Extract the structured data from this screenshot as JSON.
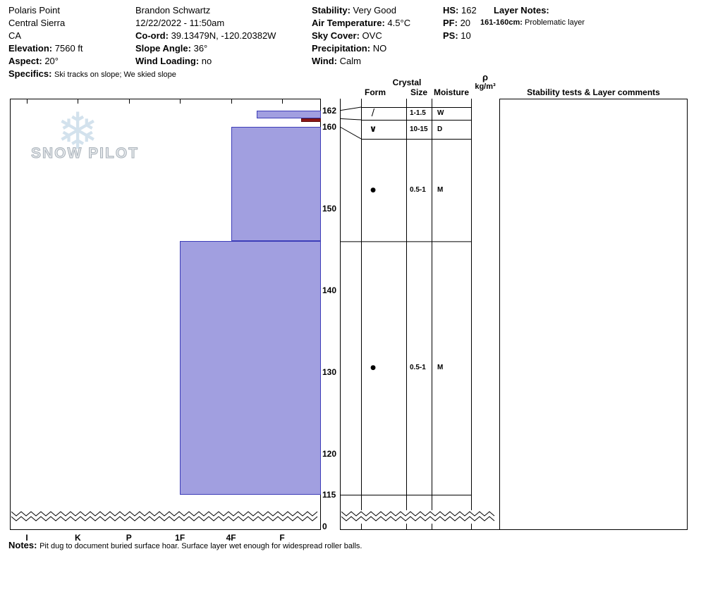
{
  "header": {
    "location": {
      "name": "Polaris Point",
      "region": "Central Sierra",
      "state": "CA",
      "elevation_label": "Elevation:",
      "elevation_value": "7560 ft",
      "aspect_label": "Aspect:",
      "aspect_value": "20°",
      "specifics_label": "Specifics:",
      "specifics_value": "Ski tracks on slope; We skied slope"
    },
    "observer": {
      "name": "Brandon Schwartz",
      "datetime": "12/22/2022 - 11:50am",
      "coord_label": "Co-ord:",
      "coord_value": "39.13479N, -120.20382W",
      "slope_angle_label": "Slope Angle:",
      "slope_angle_value": "36°",
      "wind_loading_label": "Wind Loading:",
      "wind_loading_value": "no"
    },
    "conditions": {
      "stability_label": "Stability:",
      "stability_value": "Very Good",
      "air_temp_label": "Air Temperature:",
      "air_temp_value": "4.5°C",
      "sky_cover_label": "Sky Cover:",
      "sky_cover_value": "OVC",
      "precip_label": "Precipitation:",
      "precip_value": "NO",
      "wind_label": "Wind:",
      "wind_value": "Calm"
    },
    "summary": {
      "hs_label": "HS:",
      "hs_value": "162",
      "pf_label": "PF:",
      "pf_value": "20",
      "ps_label": "PS:",
      "ps_value": "10"
    },
    "layer_notes": {
      "title": "Layer Notes:",
      "items": [
        {
          "range": "161-160cm:",
          "text": "Problematic layer"
        }
      ]
    }
  },
  "watermark": {
    "text": "SNOW PILOT",
    "snowflake_icon": "❄"
  },
  "table": {
    "headers": {
      "crystal": "Crystal",
      "form": "Form",
      "size": "Size",
      "moisture": "Moisture",
      "rho": "ρ",
      "rho_units": "kg/m³",
      "stability": "Stability tests & Layer comments"
    }
  },
  "chart_data": {
    "type": "bar",
    "subtype": "snow-profile-hardness",
    "hand_hardness_ticks": [
      "I",
      "K",
      "P",
      "1F",
      "4F",
      "F"
    ],
    "depth_tick_labels_cm": [
      162,
      160,
      150,
      140,
      130,
      120,
      115,
      0
    ],
    "depth_axis_break_label": "0",
    "total_height_cm": 162,
    "bar_fill": "#a19fe0",
    "bar_border": "#3d3db8",
    "problem_fill": "#8c1717",
    "problem_border": "#5e0d0d",
    "layers": [
      {
        "top_cm": 162,
        "bottom_cm": 161,
        "hardness": "F+",
        "grain_form_symbol": "/",
        "grain_size_mm": "1-1.5",
        "moisture": "W"
      },
      {
        "top_cm": 161,
        "bottom_cm": 160,
        "hardness": "F-",
        "grain_form_symbol": "∨",
        "grain_size_mm": "10-15",
        "moisture": "D",
        "problematic": true
      },
      {
        "top_cm": 160,
        "bottom_cm": 146,
        "hardness": "4F",
        "grain_form_symbol": "●",
        "grain_size_mm": "0.5-1",
        "moisture": "M"
      },
      {
        "top_cm": 146,
        "bottom_cm": 115,
        "hardness": "1F",
        "grain_form_symbol": "●",
        "grain_size_mm": "0.5-1",
        "moisture": "M"
      }
    ]
  },
  "notes": {
    "label": "Notes:",
    "text": "Pit dug to document buried surface hoar. Surface layer wet enough for widespread roller balls."
  }
}
